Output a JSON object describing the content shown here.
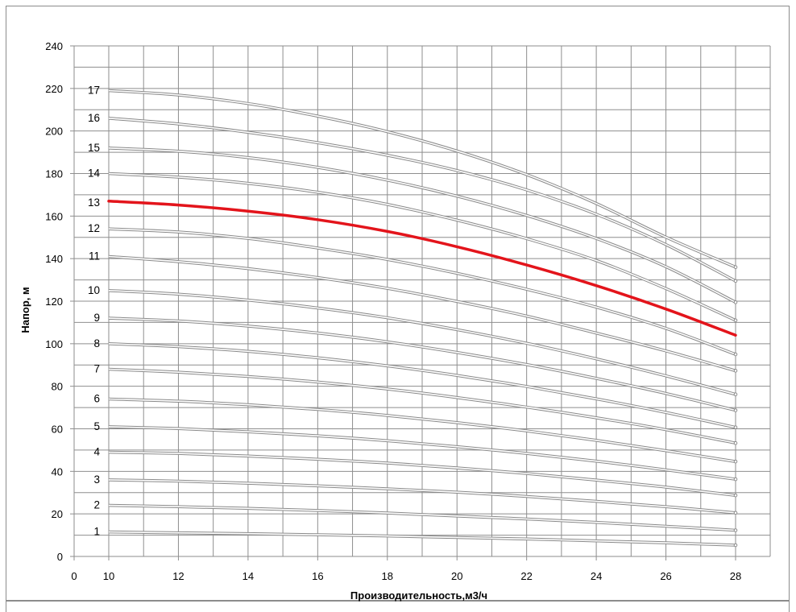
{
  "chart_data": {
    "type": "line",
    "title": "",
    "xlabel": "Производительность,м3/ч",
    "ylabel": "Напор, м",
    "xlim": [
      0,
      28
    ],
    "ylim": [
      0,
      240
    ],
    "x_ticks": [
      "0",
      "10",
      "12",
      "14",
      "16",
      "18",
      "20",
      "22",
      "24",
      "26",
      "28"
    ],
    "y_ticks": [
      "0",
      "20",
      "40",
      "60",
      "80",
      "100",
      "120",
      "140",
      "160",
      "180",
      "200",
      "220",
      "240"
    ],
    "grid": true,
    "highlight_color": "#e3141b",
    "curve_color": "#8a8a8a",
    "x": [
      10,
      12,
      14,
      16,
      18,
      20,
      22,
      24,
      26,
      28
    ],
    "series": [
      {
        "name": "1",
        "values": [
          11.5,
          11.1,
          10.7,
          10.2,
          9.6,
          8.9,
          8.2,
          7.3,
          6.4,
          5.3
        ]
      },
      {
        "name": "2",
        "values": [
          24.0,
          23.4,
          22.6,
          21.6,
          20.4,
          19.0,
          17.6,
          16.0,
          14.2,
          12.3
        ]
      },
      {
        "name": "3",
        "values": [
          36.0,
          35.4,
          34.4,
          33.2,
          31.8,
          30.2,
          28.2,
          25.9,
          23.4,
          20.5
        ]
      },
      {
        "name": "4",
        "values": [
          49.0,
          48.4,
          47.2,
          45.7,
          43.9,
          41.6,
          39.0,
          35.9,
          32.6,
          28.7
        ]
      },
      {
        "name": "5",
        "values": [
          61.0,
          60.1,
          58.6,
          56.7,
          54.4,
          51.6,
          48.4,
          44.8,
          40.7,
          36.3
        ]
      },
      {
        "name": "6",
        "values": [
          74.0,
          73.0,
          71.3,
          69.1,
          66.3,
          62.9,
          59.0,
          54.6,
          49.7,
          44.6
        ]
      },
      {
        "name": "7",
        "values": [
          88.0,
          86.6,
          84.6,
          82.0,
          78.7,
          74.7,
          70.2,
          65.2,
          59.6,
          53.3
        ]
      },
      {
        "name": "8",
        "values": [
          100.0,
          98.6,
          96.4,
          93.4,
          89.6,
          85.1,
          79.9,
          74.1,
          67.7,
          60.7
        ]
      },
      {
        "name": "9",
        "values": [
          112.0,
          110.7,
          108.3,
          105.0,
          100.9,
          95.9,
          90.2,
          83.7,
          76.6,
          68.7
        ]
      },
      {
        "name": "10",
        "values": [
          125.0,
          123.3,
          120.5,
          116.8,
          112.2,
          106.6,
          100.2,
          92.9,
          84.9,
          76.2
        ]
      },
      {
        "name": "11",
        "values": [
          141.0,
          138.6,
          135.3,
          131.1,
          126.0,
          119.9,
          113.0,
          105.0,
          96.6,
          87.3
        ]
      },
      {
        "name": "12",
        "values": [
          154.0,
          152.5,
          149.5,
          145.0,
          139.6,
          133.1,
          125.6,
          117.2,
          107.2,
          95.0
        ]
      },
      {
        "name": "13",
        "values": [
          167.0,
          165.2,
          162.3,
          158.3,
          152.8,
          145.6,
          137.0,
          127.3,
          116.3,
          104.0
        ]
      },
      {
        "name": "14",
        "values": [
          180.0,
          178.3,
          175.4,
          171.2,
          165.5,
          158.1,
          149.4,
          139.1,
          125.9,
          111.0
        ]
      },
      {
        "name": "15",
        "values": [
          192.0,
          190.5,
          187.5,
          182.9,
          176.9,
          169.4,
          160.3,
          149.5,
          136.2,
          119.5
        ]
      },
      {
        "name": "16",
        "values": [
          206.0,
          203.3,
          199.4,
          194.5,
          188.6,
          181.4,
          172.3,
          160.9,
          146.6,
          129.5
        ]
      },
      {
        "name": "17",
        "values": [
          219.0,
          216.9,
          212.9,
          207.0,
          199.7,
          190.6,
          179.5,
          165.9,
          150.1,
          136.0
        ]
      }
    ],
    "highlighted_series": "13"
  }
}
